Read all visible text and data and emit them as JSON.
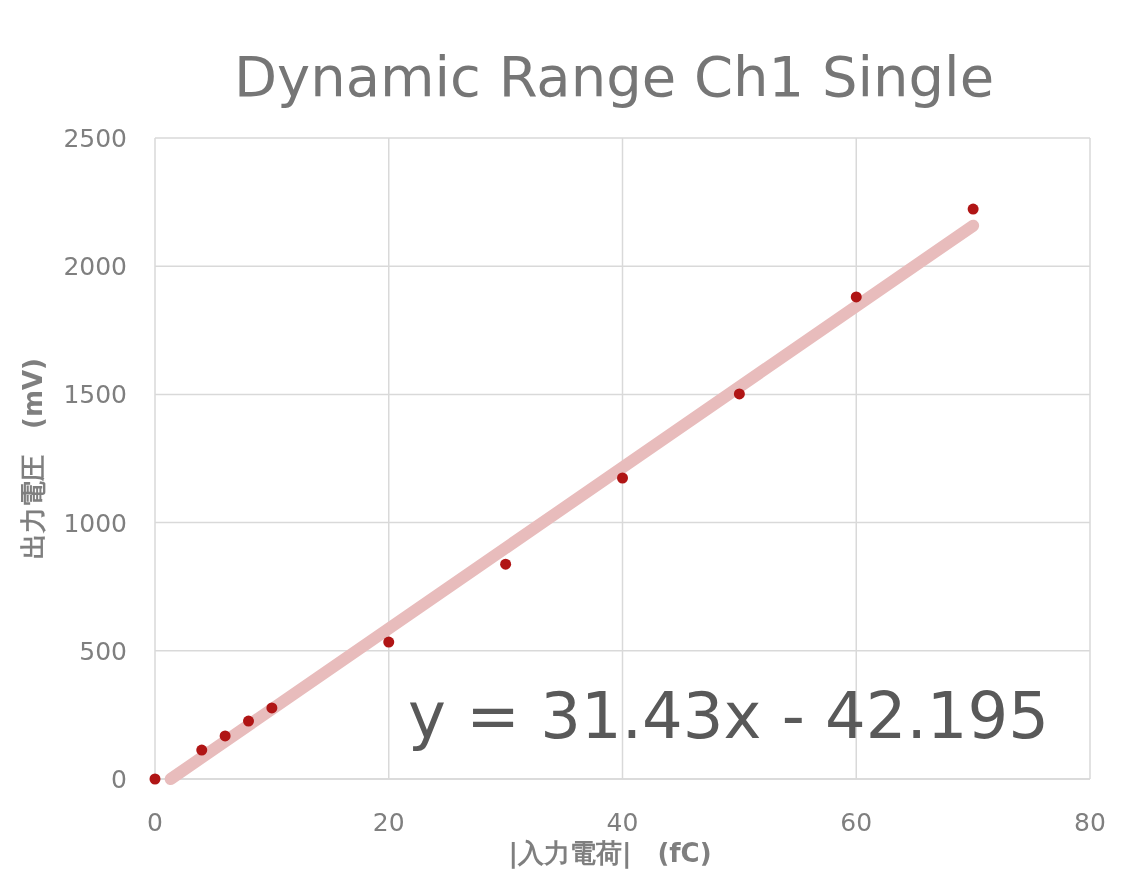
{
  "chart_data": {
    "type": "scatter",
    "title": "Dynamic Range Ch1 Single",
    "xlabel": "|入力電荷|　(fC)",
    "ylabel": "出力電圧　(mV)",
    "xlim": [
      0,
      80
    ],
    "ylim": [
      0,
      2500
    ],
    "xticks": [
      0,
      20,
      40,
      60,
      80
    ],
    "yticks": [
      0,
      500,
      1000,
      1500,
      2000,
      2500
    ],
    "grid": true,
    "marker": "circle",
    "annotations": [
      "y = 31.43x - 42.195"
    ],
    "series": [
      {
        "type": "line",
        "marker": "none",
        "color": "#e8bcbc",
        "x": [
          1.34,
          70
        ],
        "values": [
          0,
          2158
        ]
      },
      {
        "color": "#b01515",
        "x": [
          0,
          4,
          6,
          8,
          10,
          20,
          30,
          40,
          50,
          60,
          70
        ],
        "values": [
          0,
          113,
          168,
          226,
          277,
          534,
          838,
          1174,
          1502,
          1880,
          2223
        ]
      }
    ]
  }
}
